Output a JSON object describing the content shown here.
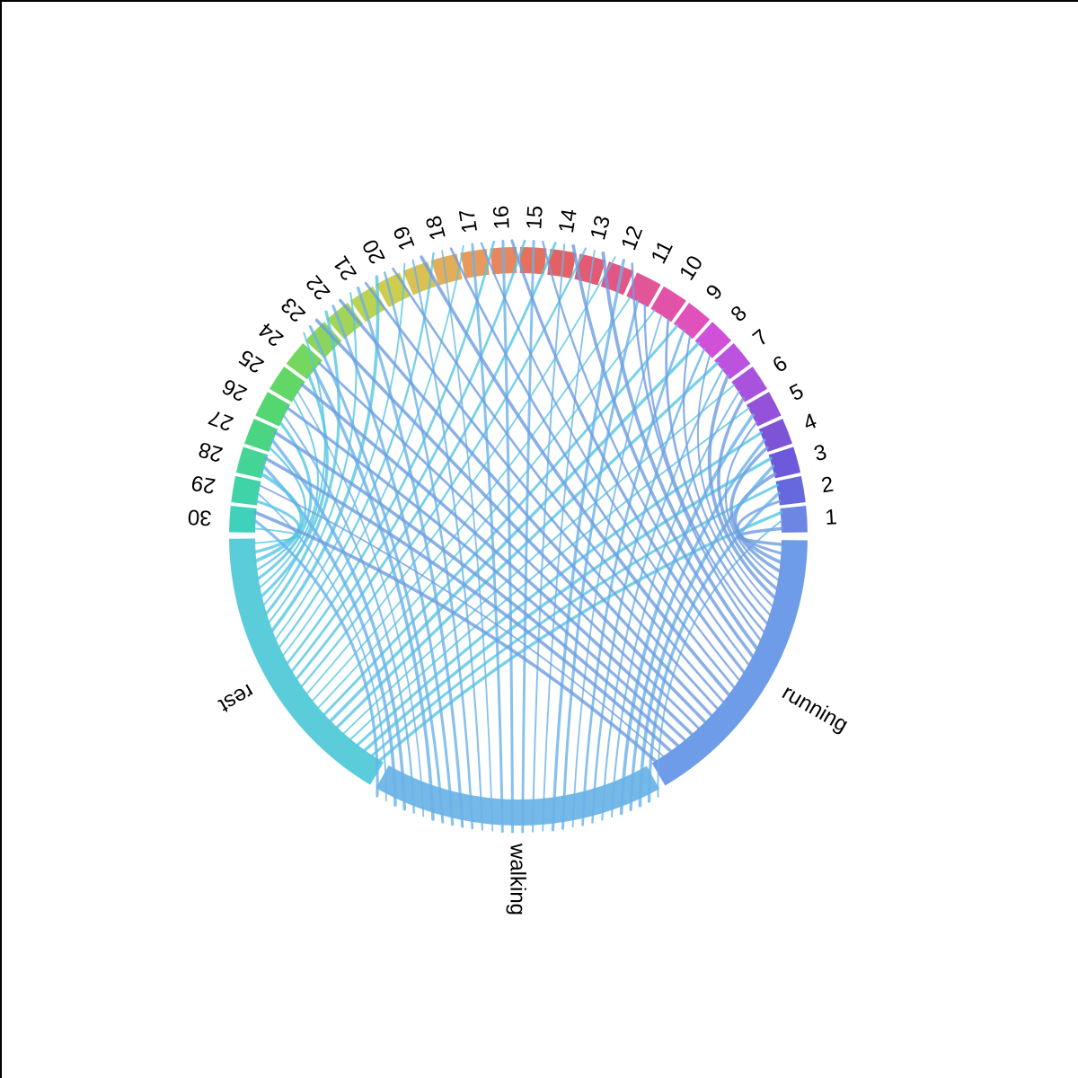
{
  "figure": {
    "background": "#ffffff",
    "edge_border_color": "#000000"
  },
  "chart_data": {
    "type": "chord",
    "title": "",
    "sectors_numbered": [
      "1",
      "2",
      "3",
      "4",
      "5",
      "6",
      "7",
      "8",
      "9",
      "10",
      "11",
      "12",
      "13",
      "14",
      "15",
      "16",
      "17",
      "18",
      "19",
      "20",
      "21",
      "22",
      "23",
      "24",
      "25",
      "26",
      "27",
      "28",
      "29",
      "30"
    ],
    "sectors_activities": [
      "rest",
      "walking",
      "running"
    ],
    "links": [
      "1→running",
      "1→walking",
      "1→rest",
      "2→running",
      "2→walking",
      "2→rest",
      "3→running",
      "3→walking",
      "3→rest",
      "4→running",
      "4→walking",
      "4→rest",
      "5→running",
      "5→walking",
      "5→rest",
      "6→running",
      "6→walking",
      "6→rest",
      "7→running",
      "7→walking",
      "7→rest",
      "8→running",
      "8→walking",
      "8→rest",
      "9→running",
      "9→walking",
      "9→rest",
      "10→running",
      "10→walking",
      "10→rest",
      "11→running",
      "11→walking",
      "11→rest",
      "12→running",
      "12→walking",
      "12→rest",
      "13→running",
      "13→walking",
      "13→rest",
      "14→running",
      "14→walking",
      "14→rest",
      "15→running",
      "15→walking",
      "15→rest",
      "16→running",
      "16→walking",
      "16→rest",
      "17→running",
      "17→walking",
      "17→rest",
      "18→running",
      "18→walking",
      "18→rest",
      "19→running",
      "19→walking",
      "19→rest",
      "20→running",
      "20→walking",
      "20→rest",
      "21→running",
      "21→walking",
      "21→rest",
      "22→running",
      "22→walking",
      "22→rest",
      "23→running",
      "23→walking",
      "23→rest",
      "24→running",
      "24→walking",
      "24→rest",
      "25→running",
      "25→walking",
      "25→rest",
      "26→running",
      "26→walking",
      "26→rest",
      "27→running",
      "27→walking",
      "27→rest",
      "28→running",
      "28→walking",
      "28→rest",
      "29→running",
      "29→walking",
      "29→rest",
      "30→running",
      "30→walking",
      "30→rest"
    ],
    "link_value_each": 1,
    "sector_colors_numbered": [
      "#6d85e3",
      "#6569dd",
      "#6d59da",
      "#7d54d6",
      "#9452da",
      "#a952de",
      "#bc52de",
      "#d150d9",
      "#e051bb",
      "#e253a8",
      "#e25597",
      "#e25685",
      "#e35b72",
      "#e46163",
      "#e5715c",
      "#e8865e",
      "#e79a5c",
      "#e3ae58",
      "#dbc052",
      "#cecd50",
      "#bad351",
      "#a2d556",
      "#8bd65a",
      "#75d75f",
      "#62d766",
      "#54d670",
      "#4bd583",
      "#44d495",
      "#40d3a8",
      "#40d1bb"
    ],
    "sector_colors_activities": {
      "rest": "#5bcdda",
      "walking": "#74b9e8",
      "running": "#6e9ce8"
    },
    "chord_colors": {
      "running": "#6e9ce0",
      "walking": "#6ab2e8",
      "rest": "#55c6e4"
    },
    "layout": {
      "direction": "counterclockwise",
      "center": [
        577,
        597
      ],
      "ring_outer_radius": 322,
      "ring_thickness": 29,
      "chord_inner_radius": 294,
      "overshoot_radius": 329,
      "overshoot_numbered_range": [
        12,
        23
      ],
      "overshoot_activity": "walking",
      "numbered_start_deg": 0.8,
      "numbered_step_deg": 5.97,
      "numbered_width_deg": 5.27,
      "activity_arcs_deg": {
        "rest": [
          180.5,
          239.2
        ],
        "walking": [
          240.5,
          299.2
        ],
        "running": [
          300.5,
          359.2
        ]
      },
      "label_radius": 342,
      "label_facing": "radial-outward",
      "chord_opacity": 0.8,
      "legend": "none",
      "grid": "off"
    }
  }
}
